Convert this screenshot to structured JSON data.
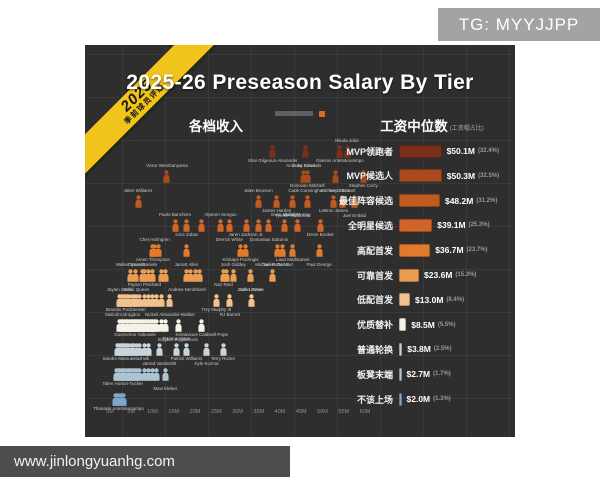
{
  "title": "2025-26 Preseason Salary By Tier",
  "ribbon": {
    "year": "2025",
    "subtitle": "季前球员评级"
  },
  "watermarks": {
    "telegram": "TG: MYYJJPP",
    "website": "www.jinlongyuanhg.com"
  },
  "headers": {
    "left": "各档收入",
    "right": "工资中位数",
    "right_note": "(工资帽占比)"
  },
  "chart_data": [
    {
      "type": "scatter",
      "title": "各档收入",
      "x_axis": {
        "min": 0,
        "max": 60,
        "unit": "$M",
        "tick_labels": [
          "0M",
          "5M",
          "10M",
          "15M",
          "20M",
          "25M",
          "30M",
          "35M",
          "40M",
          "45M",
          "50M",
          "55M",
          "60M"
        ]
      },
      "series": [
        {
          "name": "MVP领跑者",
          "color": "#7a3018",
          "points": [
            {
              "label": "Shai Gilgeous-Alexander",
              "x": 38.3
            },
            {
              "label": "Luka Doncic",
              "x": 45.9
            },
            {
              "label": "Giannis Antetokounmpo",
              "x": 54.1
            },
            {
              "label": "Nikola Jokic",
              "x": 55.8,
              "above": true
            }
          ],
          "extra_points_x": []
        },
        {
          "name": "MVP候选人",
          "color": "#a84a1e",
          "points": [
            {
              "label": "Victor Wembanyama",
              "x": 13.4,
              "above": true
            },
            {
              "label": "Anthony Edwards",
              "x": 45.6,
              "above": true
            },
            {
              "label": "Donovan Mitchell",
              "x": 46.4
            },
            {
              "label": "Anthony Davis",
              "x": 53.0
            },
            {
              "label": "Stephen Curry",
              "x": 59.6
            }
          ],
          "extra_points_x": []
        },
        {
          "name": "最佳阵容候选",
          "color": "#bf5a22",
          "points": [
            {
              "label": "Jalen Williams",
              "x": 6.6,
              "above": true
            },
            {
              "label": "Jalen Brunson",
              "x": 34.9,
              "above": true
            },
            {
              "label": "James Harden",
              "x": 39.2
            },
            {
              "label": "Tyrese Haliburton",
              "x": 43.0
            },
            {
              "label": "Cade Cunningham",
              "x": 46.4,
              "above": true
            },
            {
              "label": "LeBron James",
              "x": 52.6
            },
            {
              "label": "Kevin Durant",
              "x": 54.7,
              "above": true
            },
            {
              "label": "Joel Embiid",
              "x": 57.5
            }
          ],
          "extra_points_x": []
        },
        {
          "name": "全明星候选",
          "color": "#cf6526",
          "points": [
            {
              "label": "Paolo Banchero",
              "x": 15.3,
              "above": true
            },
            {
              "label": "Ivica Zubac",
              "x": 18.1
            },
            {
              "label": "Alperen Sengun",
              "x": 26.0,
              "above": true
            },
            {
              "label": "Derrick White",
              "x": 28.1
            },
            {
              "label": "Jaren Jackson Jr.",
              "x": 32.0
            },
            {
              "label": "Domantas Sabonis",
              "x": 37.4
            },
            {
              "label": "Evan Mobley",
              "x": 41.0,
              "above": true
            },
            {
              "label": "Jamal Murray",
              "x": 44.0,
              "above": true
            },
            {
              "label": "Devin Booker",
              "x": 49.5
            }
          ],
          "extra_points_x": [
            21.5,
            35.0
          ]
        },
        {
          "name": "高配首发",
          "color": "#e17a2d",
          "points": [
            {
              "label": "Chet Holmgren",
              "x": 10.5,
              "above": true
            },
            {
              "label": "Amen Thompson",
              "x": 10.1
            },
            {
              "label": "Jarrett Allen",
              "x": 18.0
            },
            {
              "label": "Kristaps Porzingis",
              "x": 30.7
            },
            {
              "label": "Darius Garland",
              "x": 39.4
            },
            {
              "label": "Lauri Markkanen",
              "x": 43.0
            },
            {
              "label": "Paul George",
              "x": 49.2
            }
          ],
          "extra_points_x": [
            11.5,
            31.8,
            40.6
          ]
        },
        {
          "name": "可靠首发",
          "color": "#ea9c50",
          "points": [
            {
              "label": "Walker Kessler",
              "x": 4.9,
              "above": true
            },
            {
              "label": "Dyson Daniels",
              "x": 7.7,
              "above": true
            },
            {
              "label": "Payton Pritchard",
              "x": 8.1
            },
            {
              "label": "Andrew Nembhard",
              "x": 18.1
            },
            {
              "label": "Naz Reid",
              "x": 26.7
            },
            {
              "label": "Josh Giddey",
              "x": 29.0,
              "above": true
            },
            {
              "label": "Zach LaVine",
              "x": 33.0
            },
            {
              "label": "Michael Porter Jr.",
              "x": 38.3,
              "above": true
            }
          ],
          "extra_points_x": [
            6.0,
            9.0,
            10.0,
            12.0,
            13.0,
            19.0,
            20.0,
            21.0,
            27.5
          ]
        },
        {
          "name": "低配首发",
          "color": "#f2c28c",
          "points": [
            {
              "label": "Jaylen Wells",
              "x": 2.2,
              "above": true
            },
            {
              "label": "Brandin Podziemski",
              "x": 3.7
            },
            {
              "label": "Derik Queen",
              "x": 6.3,
              "above": true
            },
            {
              "label": "Nickeil Alexander-Walker",
              "x": 14.1
            },
            {
              "label": "Trey Murphy III",
              "x": 25.0
            },
            {
              "label": "RJ Barrett",
              "x": 28.2
            },
            {
              "label": "Jalen Green",
              "x": 33.3,
              "above": true
            }
          ],
          "extra_points_x": [
            2.6,
            3.1,
            4.0,
            4.6,
            5.2,
            5.8,
            7.0,
            8.0,
            9.0,
            10.0,
            11.0,
            12.0
          ]
        },
        {
          "name": "优质替补",
          "color": "#f7f2e8",
          "points": [
            {
              "label": "Malcolm Brogdon",
              "x": 3.0,
              "above": true
            },
            {
              "label": "Guerschon Yabusele",
              "x": 5.9
            },
            {
              "label": "Bogdan Bogdanovic",
              "x": 16.0
            },
            {
              "label": "Kentavious Caldwell-Pope",
              "x": 21.6
            }
          ],
          "extra_points_x": [
            2.2,
            2.6,
            3.4,
            3.8,
            4.2,
            4.6,
            5.0,
            5.4,
            5.8,
            6.2,
            6.6,
            7.0,
            7.4,
            7.8,
            8.2,
            8.6,
            9.0,
            9.5,
            10.0,
            10.5,
            11.0,
            12.0,
            13.0
          ]
        },
        {
          "name": "普通轮换",
          "color": "#c9d3da",
          "points": [
            {
              "label": "Sandro Mamukelashvili",
              "x": 3.7
            },
            {
              "label": "Jarred Vanderbilt",
              "x": 11.6
            },
            {
              "label": "Terance Mann",
              "x": 15.6,
              "above": true
            },
            {
              "label": "Patrick Williams",
              "x": 18.0
            },
            {
              "label": "Kyle Kuzma",
              "x": 22.7
            },
            {
              "label": "Terry Rozier",
              "x": 26.6
            }
          ],
          "extra_points_x": [
            1.8,
            2.2,
            2.6,
            3.0,
            3.4,
            4.0,
            4.4,
            5.0,
            5.6,
            6.2,
            7.0,
            8.0,
            9.0
          ]
        },
        {
          "name": "板凳末端",
          "color": "#aec4d2",
          "points": [
            {
              "label": "Talen Horton-Tucker",
              "x": 3.0
            },
            {
              "label": "Maxi Kleber",
              "x": 13.0
            }
          ],
          "extra_points_x": [
            1.5,
            1.9,
            2.3,
            2.7,
            3.1,
            3.5,
            3.9,
            4.3,
            4.7,
            5.1,
            5.5,
            6.0,
            6.5,
            7.0,
            8.0,
            9.0,
            10.0,
            11.0
          ]
        },
        {
          "name": "不该上场",
          "color": "#7da7cb",
          "points": [
            {
              "label": "Thanasis Antetokounmpo",
              "x": 2.0
            }
          ],
          "extra_points_x": [
            1.2,
            1.6,
            2.4,
            2.8,
            3.2
          ]
        }
      ]
    },
    {
      "type": "bar",
      "title": "工资中位数",
      "subtitle": "(工资帽占比)",
      "categories": [
        "MVP领跑者",
        "MVP候选人",
        "最佳阵容候选",
        "全明星候选",
        "高配首发",
        "可靠首发",
        "低配首发",
        "优质替补",
        "普通轮换",
        "板凳末端",
        "不该上场"
      ],
      "values": [
        50.1,
        50.3,
        48.2,
        39.1,
        36.7,
        23.6,
        13.0,
        8.5,
        3.8,
        2.7,
        2.0
      ],
      "value_labels": [
        "$50.1M",
        "$50.3M",
        "$48.2M",
        "$39.1M",
        "$36.7M",
        "$23.6M",
        "$13.0M",
        "$8.5M",
        "$3.8M",
        "$2.7M",
        "$2.0M"
      ],
      "pct_labels": [
        "(32.4%)",
        "(32.5%)",
        "(31.2%)",
        "(25.3%)",
        "(23.7%)",
        "(15.3%)",
        "(8.4%)",
        "(5.5%)",
        "(2.5%)",
        "(1.7%)",
        "(1.3%)"
      ],
      "colors": [
        "#7a3018",
        "#a84a1e",
        "#bf5a22",
        "#cf6526",
        "#e17a2d",
        "#ea9c50",
        "#f2c28c",
        "#f7f2e8",
        "#c9d3da",
        "#aec4d2",
        "#7da7cb"
      ],
      "xlim": [
        0,
        60
      ],
      "legend": "none",
      "grid": "dark-panel"
    }
  ]
}
